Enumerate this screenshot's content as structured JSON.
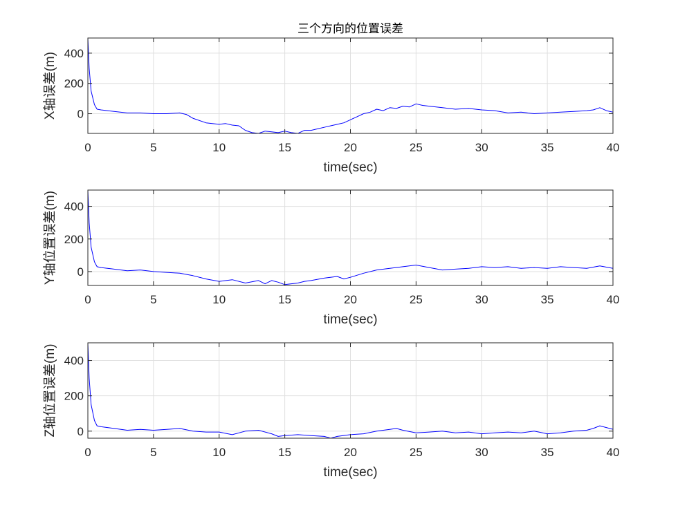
{
  "figure": {
    "title": "三个方向的位置误差"
  },
  "chart_data": [
    {
      "type": "line",
      "xlabel": "time(sec)",
      "ylabel": "X轴误差(m)",
      "xlim": [
        0,
        40
      ],
      "ylim": [
        -130,
        500
      ],
      "x_ticks": [
        0,
        5,
        10,
        15,
        20,
        25,
        30,
        35,
        40
      ],
      "y_ticks": [
        0,
        200,
        400
      ],
      "grid": true,
      "color": "#0000FF",
      "series": [
        {
          "x": [
            0,
            0.1,
            0.25,
            0.5,
            0.7,
            1,
            2,
            3,
            4,
            5,
            6,
            7,
            7.5,
            8,
            9,
            10,
            10.5,
            11,
            11.5,
            12,
            12.5,
            13,
            13.5,
            14,
            14.5,
            15,
            15.5,
            16,
            16.5,
            17,
            17.5,
            18,
            18.5,
            19,
            19.5,
            20,
            20.5,
            21,
            21.5,
            22,
            22.5,
            23,
            23.5,
            24,
            24.5,
            25,
            25.5,
            26,
            27,
            28,
            29,
            30,
            31,
            32,
            33,
            34,
            35,
            36,
            37,
            38,
            38.5,
            39,
            39.5,
            40
          ],
          "y": [
            500,
            300,
            150,
            60,
            30,
            25,
            15,
            5,
            5,
            0,
            0,
            5,
            -5,
            -30,
            -60,
            -70,
            -65,
            -75,
            -80,
            -110,
            -125,
            -130,
            -115,
            -120,
            -125,
            -115,
            -125,
            -130,
            -110,
            -110,
            -100,
            -90,
            -80,
            -70,
            -60,
            -40,
            -20,
            0,
            10,
            30,
            20,
            40,
            35,
            50,
            45,
            65,
            55,
            50,
            40,
            30,
            35,
            25,
            20,
            5,
            10,
            0,
            5,
            10,
            15,
            20,
            25,
            40,
            20,
            10
          ]
        }
      ]
    },
    {
      "type": "line",
      "xlabel": "time(sec)",
      "ylabel": "Y轴位置误差(m)",
      "xlim": [
        0,
        40
      ],
      "ylim": [
        -85,
        500
      ],
      "x_ticks": [
        0,
        5,
        10,
        15,
        20,
        25,
        30,
        35,
        40
      ],
      "y_ticks": [
        0,
        200,
        400
      ],
      "grid": true,
      "color": "#0000FF",
      "series": [
        {
          "x": [
            0,
            0.1,
            0.25,
            0.5,
            0.7,
            1,
            2,
            3,
            4,
            5,
            6,
            7,
            8,
            9,
            10,
            11,
            12,
            13,
            13.5,
            14,
            14.5,
            15,
            15.5,
            16,
            16.5,
            17,
            18,
            19,
            19.5,
            20,
            21,
            22,
            23,
            24,
            25,
            26,
            27,
            28,
            29,
            30,
            31,
            32,
            33,
            34,
            35,
            36,
            37,
            38,
            39,
            40
          ],
          "y": [
            500,
            300,
            150,
            60,
            30,
            25,
            15,
            5,
            10,
            0,
            -5,
            -10,
            -25,
            -45,
            -60,
            -50,
            -70,
            -55,
            -75,
            -55,
            -65,
            -80,
            -75,
            -70,
            -60,
            -55,
            -40,
            -30,
            -45,
            -35,
            -10,
            10,
            20,
            30,
            40,
            25,
            10,
            15,
            20,
            30,
            25,
            30,
            20,
            25,
            20,
            30,
            25,
            20,
            35,
            20
          ]
        }
      ]
    },
    {
      "type": "line",
      "xlabel": "time(sec)",
      "ylabel": "Z轴位置误差(m)",
      "xlim": [
        0,
        40
      ],
      "ylim": [
        -40,
        500
      ],
      "x_ticks": [
        0,
        5,
        10,
        15,
        20,
        25,
        30,
        35,
        40
      ],
      "y_ticks": [
        0,
        200,
        400
      ],
      "grid": true,
      "color": "#0000FF",
      "series": [
        {
          "x": [
            0,
            0.1,
            0.25,
            0.5,
            0.7,
            1,
            2,
            3,
            4,
            5,
            6,
            7,
            8,
            9,
            10,
            11,
            12,
            13,
            14,
            14.5,
            15,
            16,
            17,
            18,
            18.5,
            19,
            20,
            21,
            22,
            23,
            23.5,
            24,
            25,
            26,
            27,
            28,
            29,
            30,
            31,
            32,
            33,
            34,
            35,
            36,
            37,
            38,
            38.5,
            39,
            40
          ],
          "y": [
            500,
            300,
            150,
            60,
            30,
            25,
            15,
            5,
            10,
            5,
            10,
            15,
            0,
            -5,
            -5,
            -20,
            0,
            5,
            -15,
            -30,
            -25,
            -20,
            -25,
            -30,
            -40,
            -30,
            -20,
            -15,
            0,
            10,
            15,
            5,
            -10,
            -5,
            0,
            -10,
            -5,
            -15,
            -10,
            -5,
            -10,
            0,
            -15,
            -10,
            0,
            5,
            15,
            30,
            10
          ]
        }
      ]
    }
  ]
}
